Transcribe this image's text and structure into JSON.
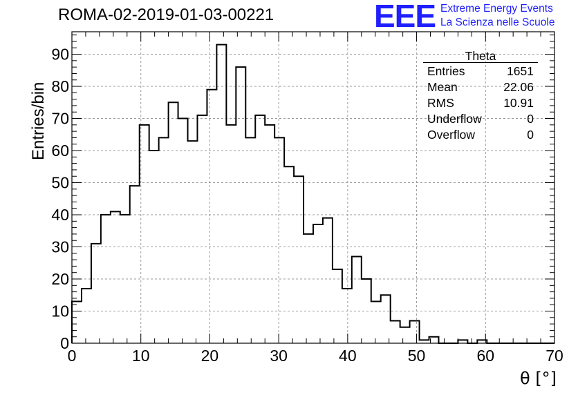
{
  "header": {
    "title": "ROMA-02-2019-01-03-00221",
    "logo_text": "EEE",
    "logo_line1": "Extreme Energy Events",
    "logo_line2": "La Scienza nelle Scuole"
  },
  "stats": {
    "title": "Theta",
    "rows": [
      {
        "label": "Entries",
        "value": "1651"
      },
      {
        "label": "Mean",
        "value": "22.06"
      },
      {
        "label": "RMS",
        "value": "10.91"
      },
      {
        "label": "Underflow",
        "value": "0"
      },
      {
        "label": "Overflow",
        "value": "0"
      }
    ]
  },
  "colors": {
    "line": "#000000",
    "grid": "#9a9a9a",
    "logo": "#1f1fff"
  },
  "chart_data": {
    "type": "histogram",
    "xlabel": "θ [°]",
    "ylabel": "Entries/bin",
    "xlim": [
      0,
      70
    ],
    "ylim": [
      0,
      97
    ],
    "grid": true,
    "x_ticks": [
      0,
      10,
      20,
      30,
      40,
      50,
      60,
      70
    ],
    "y_ticks": [
      0,
      10,
      20,
      30,
      40,
      50,
      60,
      70,
      80,
      90
    ],
    "bin_edges_start": 0,
    "bin_width": 1.4,
    "values": [
      13,
      17,
      31,
      40,
      41,
      40,
      49,
      68,
      60,
      64,
      75,
      70,
      63,
      71,
      79,
      93,
      68,
      86,
      64,
      71,
      68,
      64,
      55,
      52,
      34,
      37,
      39,
      23,
      17,
      27,
      20,
      13,
      15,
      7,
      5,
      7,
      1,
      2,
      0,
      0,
      1,
      0,
      1,
      0,
      0,
      0,
      0,
      0,
      0,
      0
    ]
  }
}
